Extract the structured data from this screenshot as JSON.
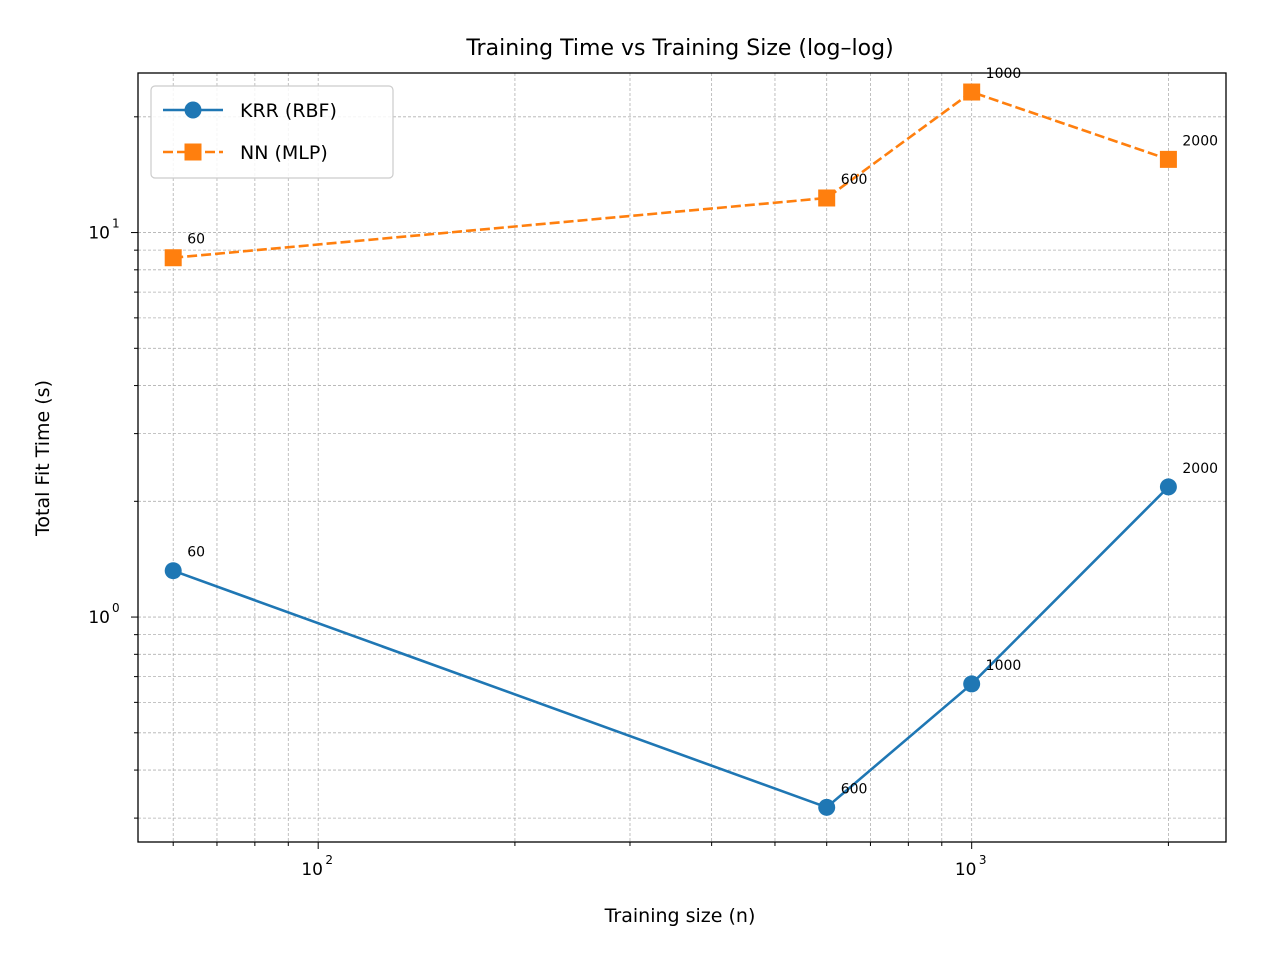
{
  "chart_data": {
    "type": "line",
    "title": "Training Time vs Training Size (log–log)",
    "xlabel": "Training size (n)",
    "ylabel": "Total Fit Time (s)",
    "xscale": "log",
    "yscale": "log",
    "xlim": [
      53,
      2450
    ],
    "ylim": [
      0.26,
      26
    ],
    "grid": true,
    "legend_position": "top-left",
    "x_ticks": [
      {
        "value": 100,
        "base": "10",
        "exp": "2"
      },
      {
        "value": 1000,
        "base": "10",
        "exp": "3"
      }
    ],
    "y_ticks": [
      {
        "value": 1,
        "base": "10",
        "exp": "0"
      },
      {
        "value": 10,
        "base": "10",
        "exp": "1"
      }
    ],
    "series": [
      {
        "name": "KRR (RBF)",
        "color": "#1f77b4",
        "marker": "circle",
        "linestyle": "solid",
        "x": [
          60,
          600,
          1000,
          2000
        ],
        "y": [
          1.32,
          0.32,
          0.67,
          2.18
        ],
        "point_labels": [
          "60",
          "600",
          "1000",
          "2000"
        ]
      },
      {
        "name": "NN (MLP)",
        "color": "#ff7f0e",
        "marker": "square",
        "linestyle": "dashed",
        "x": [
          60,
          600,
          1000,
          2000
        ],
        "y": [
          8.6,
          12.3,
          23.2,
          15.5
        ],
        "point_labels": [
          "60",
          "600",
          "1000",
          "2000"
        ]
      }
    ]
  }
}
